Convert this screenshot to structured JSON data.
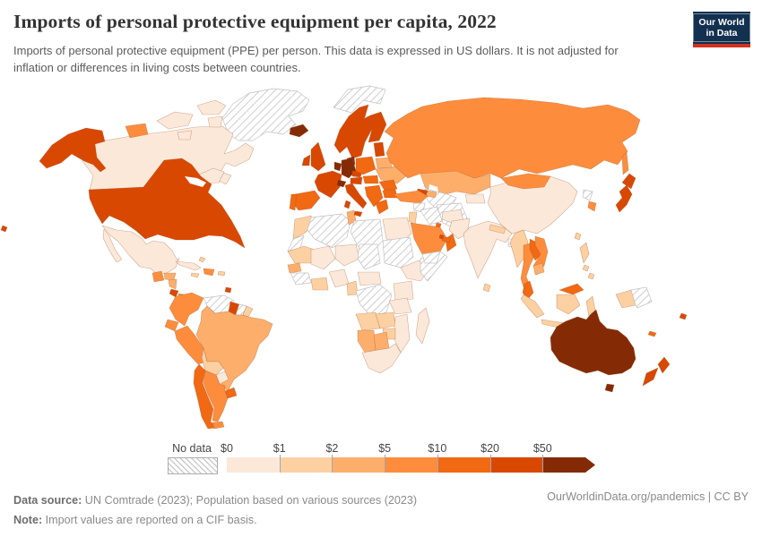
{
  "header": {
    "title": "Imports of personal protective equipment per capita, 2022",
    "subtitle": "Imports of personal protective equipment (PPE) per person. This data is expressed in US dollars. It is not adjusted for inflation or differences in living costs between countries.",
    "logo": {
      "line1": "Our World",
      "line2": "in Data",
      "bg": "#12304f",
      "accent": "#d0321f"
    }
  },
  "legend": {
    "no_data_label": "No data"
  },
  "footer": {
    "source_label": "Data source:",
    "source_text": " UN Comtrade (2023); Population based on various sources (2023)",
    "note_label": "Note:",
    "note_text": " Import values are reported on a CIF basis.",
    "right_text": "OurWorldinData.org/pandemics | CC BY"
  },
  "chart_data": {
    "type": "choropleth_map",
    "title": "Imports of personal protective equipment per capita, 2022",
    "unit": "US dollars per person",
    "legend_position": "bottom",
    "no_data": {
      "label": "No data",
      "style": "diagonal-hatch"
    },
    "legend_bins": [
      {
        "tick": "$0",
        "range": "$0-$1",
        "color": "#fce8d9"
      },
      {
        "tick": "$1",
        "range": "$1-$2",
        "color": "#fdd0a2"
      },
      {
        "tick": "$2",
        "range": "$2-$5",
        "color": "#fdae6b"
      },
      {
        "tick": "$5",
        "range": "$5-$10",
        "color": "#fd8d3c"
      },
      {
        "tick": "$10",
        "range": "$10-$20",
        "color": "#f16913"
      },
      {
        "tick": "$20",
        "range": "$20-$50",
        "color": "#d94801"
      },
      {
        "tick": "$50",
        "range": "$50+",
        "color": "#842b06"
      }
    ],
    "countries": [
      {
        "name": "United States",
        "bin": 5
      },
      {
        "name": "Canada",
        "bin": 0
      },
      {
        "name": "Greenland",
        "bin": -1
      },
      {
        "name": "Svalbard",
        "bin": -1
      },
      {
        "name": "Iceland",
        "bin": 6
      },
      {
        "name": "Mexico",
        "bin": 0
      },
      {
        "name": "Guatemala",
        "bin": 3
      },
      {
        "name": "Honduras",
        "bin": 2
      },
      {
        "name": "Nicaragua",
        "bin": 2
      },
      {
        "name": "Costa Rica",
        "bin": 5
      },
      {
        "name": "Panama",
        "bin": 3
      },
      {
        "name": "Cuba",
        "bin": 0
      },
      {
        "name": "Jamaica",
        "bin": 1
      },
      {
        "name": "Dominican Republic",
        "bin": 3
      },
      {
        "name": "Puerto Rico",
        "bin": 1
      },
      {
        "name": "Bahamas",
        "bin": 1
      },
      {
        "name": "Trinidad and Tobago",
        "bin": 5
      },
      {
        "name": "Colombia",
        "bin": 3
      },
      {
        "name": "Venezuela",
        "bin": -1
      },
      {
        "name": "Guyana",
        "bin": 5
      },
      {
        "name": "Suriname",
        "bin": -1
      },
      {
        "name": "French Guiana",
        "bin": 1
      },
      {
        "name": "Ecuador",
        "bin": 3
      },
      {
        "name": "Peru",
        "bin": 3
      },
      {
        "name": "Brazil",
        "bin": 2
      },
      {
        "name": "Bolivia",
        "bin": 1
      },
      {
        "name": "Paraguay",
        "bin": 0
      },
      {
        "name": "Uruguay",
        "bin": 4
      },
      {
        "name": "Chile",
        "bin": 4
      },
      {
        "name": "Argentina",
        "bin": 3
      },
      {
        "name": "Morocco",
        "bin": 1
      },
      {
        "name": "Western Sahara",
        "bin": -1
      },
      {
        "name": "Algeria",
        "bin": -1
      },
      {
        "name": "Tunisia",
        "bin": 2
      },
      {
        "name": "Libya",
        "bin": -1
      },
      {
        "name": "Egypt",
        "bin": 0
      },
      {
        "name": "Mauritania",
        "bin": 1
      },
      {
        "name": "Mali",
        "bin": 0
      },
      {
        "name": "Niger",
        "bin": 0
      },
      {
        "name": "Chad",
        "bin": -1
      },
      {
        "name": "Sudan",
        "bin": -1
      },
      {
        "name": "Ethiopia",
        "bin": 0
      },
      {
        "name": "Somalia",
        "bin": -1
      },
      {
        "name": "Senegal",
        "bin": 2
      },
      {
        "name": "Guinea",
        "bin": -1
      },
      {
        "name": "Ghana",
        "bin": 1
      },
      {
        "name": "Nigeria",
        "bin": 0
      },
      {
        "name": "Cameroon",
        "bin": 1
      },
      {
        "name": "Central African Republic",
        "bin": 0
      },
      {
        "name": "Democratic Republic of Congo",
        "bin": -1
      },
      {
        "name": "Kenya",
        "bin": 0
      },
      {
        "name": "Tanzania",
        "bin": 0
      },
      {
        "name": "Angola",
        "bin": 1
      },
      {
        "name": "Zambia",
        "bin": 1
      },
      {
        "name": "Mozambique",
        "bin": 0
      },
      {
        "name": "Zimbabwe",
        "bin": 1
      },
      {
        "name": "Namibia",
        "bin": 2
      },
      {
        "name": "Botswana",
        "bin": 2
      },
      {
        "name": "South Africa",
        "bin": 0
      },
      {
        "name": "Madagascar",
        "bin": 0
      },
      {
        "name": "Norway",
        "bin": 5
      },
      {
        "name": "Sweden",
        "bin": 5
      },
      {
        "name": "Finland",
        "bin": 5
      },
      {
        "name": "Denmark",
        "bin": 6
      },
      {
        "name": "Baltic states",
        "bin": 5
      },
      {
        "name": "United Kingdom",
        "bin": 5
      },
      {
        "name": "Ireland",
        "bin": 5
      },
      {
        "name": "France",
        "bin": 5
      },
      {
        "name": "Spain",
        "bin": 4
      },
      {
        "name": "Portugal",
        "bin": 4
      },
      {
        "name": "Germany",
        "bin": 6
      },
      {
        "name": "Belgium-Netherlands",
        "bin": 6
      },
      {
        "name": "Switzerland",
        "bin": 6
      },
      {
        "name": "Czechia",
        "bin": 5
      },
      {
        "name": "Austria",
        "bin": 5
      },
      {
        "name": "Poland",
        "bin": 4
      },
      {
        "name": "Italy",
        "bin": 5
      },
      {
        "name": "Ukraine",
        "bin": 2
      },
      {
        "name": "Belarus",
        "bin": 2
      },
      {
        "name": "Romania",
        "bin": 4
      },
      {
        "name": "Hungary",
        "bin": 4
      },
      {
        "name": "Serbia",
        "bin": 4
      },
      {
        "name": "Greece",
        "bin": 4
      },
      {
        "name": "Bulgaria",
        "bin": 4
      },
      {
        "name": "Russia",
        "bin": 3
      },
      {
        "name": "Kazakhstan",
        "bin": 2
      },
      {
        "name": "Turkmenistan-Uzbekistan",
        "bin": -1
      },
      {
        "name": "Kyrgyzstan",
        "bin": 0
      },
      {
        "name": "Georgia",
        "bin": 5
      },
      {
        "name": "Azerbaijan",
        "bin": 2
      },
      {
        "name": "Turkey",
        "bin": 3
      },
      {
        "name": "Syria",
        "bin": -1
      },
      {
        "name": "Iraq",
        "bin": -1
      },
      {
        "name": "Iran",
        "bin": -1
      },
      {
        "name": "Israel-Jordan",
        "bin": 1
      },
      {
        "name": "Saudi Arabia",
        "bin": 3
      },
      {
        "name": "Yemen",
        "bin": -1
      },
      {
        "name": "Oman",
        "bin": 4
      },
      {
        "name": "United Arab Emirates",
        "bin": 4
      },
      {
        "name": "Qatar",
        "bin": 5
      },
      {
        "name": "Kuwait",
        "bin": 4
      },
      {
        "name": "Afghanistan",
        "bin": 0
      },
      {
        "name": "Pakistan",
        "bin": 0
      },
      {
        "name": "India",
        "bin": 0
      },
      {
        "name": "Nepal",
        "bin": 1
      },
      {
        "name": "Sri Lanka",
        "bin": 1
      },
      {
        "name": "Bangladesh",
        "bin": -1
      },
      {
        "name": "China",
        "bin": 0
      },
      {
        "name": "Mongolia",
        "bin": 3
      },
      {
        "name": "Taiwan",
        "bin": 1
      },
      {
        "name": "North Korea",
        "bin": -1
      },
      {
        "name": "South Korea",
        "bin": 3
      },
      {
        "name": "Japan",
        "bin": 5
      },
      {
        "name": "Myanmar",
        "bin": 1
      },
      {
        "name": "Thailand",
        "bin": 3
      },
      {
        "name": "Laos",
        "bin": 4
      },
      {
        "name": "Vietnam",
        "bin": 3
      },
      {
        "name": "Cambodia",
        "bin": 2
      },
      {
        "name": "Malaysia",
        "bin": 4
      },
      {
        "name": "Indonesia",
        "bin": 1
      },
      {
        "name": "Papua New Guinea",
        "bin": -1
      },
      {
        "name": "Philippines",
        "bin": 1
      },
      {
        "name": "Australia",
        "bin": 6
      },
      {
        "name": "New Zealand",
        "bin": 5
      },
      {
        "name": "Fiji",
        "bin": 5
      },
      {
        "name": "New Caledonia",
        "bin": 4
      }
    ]
  }
}
